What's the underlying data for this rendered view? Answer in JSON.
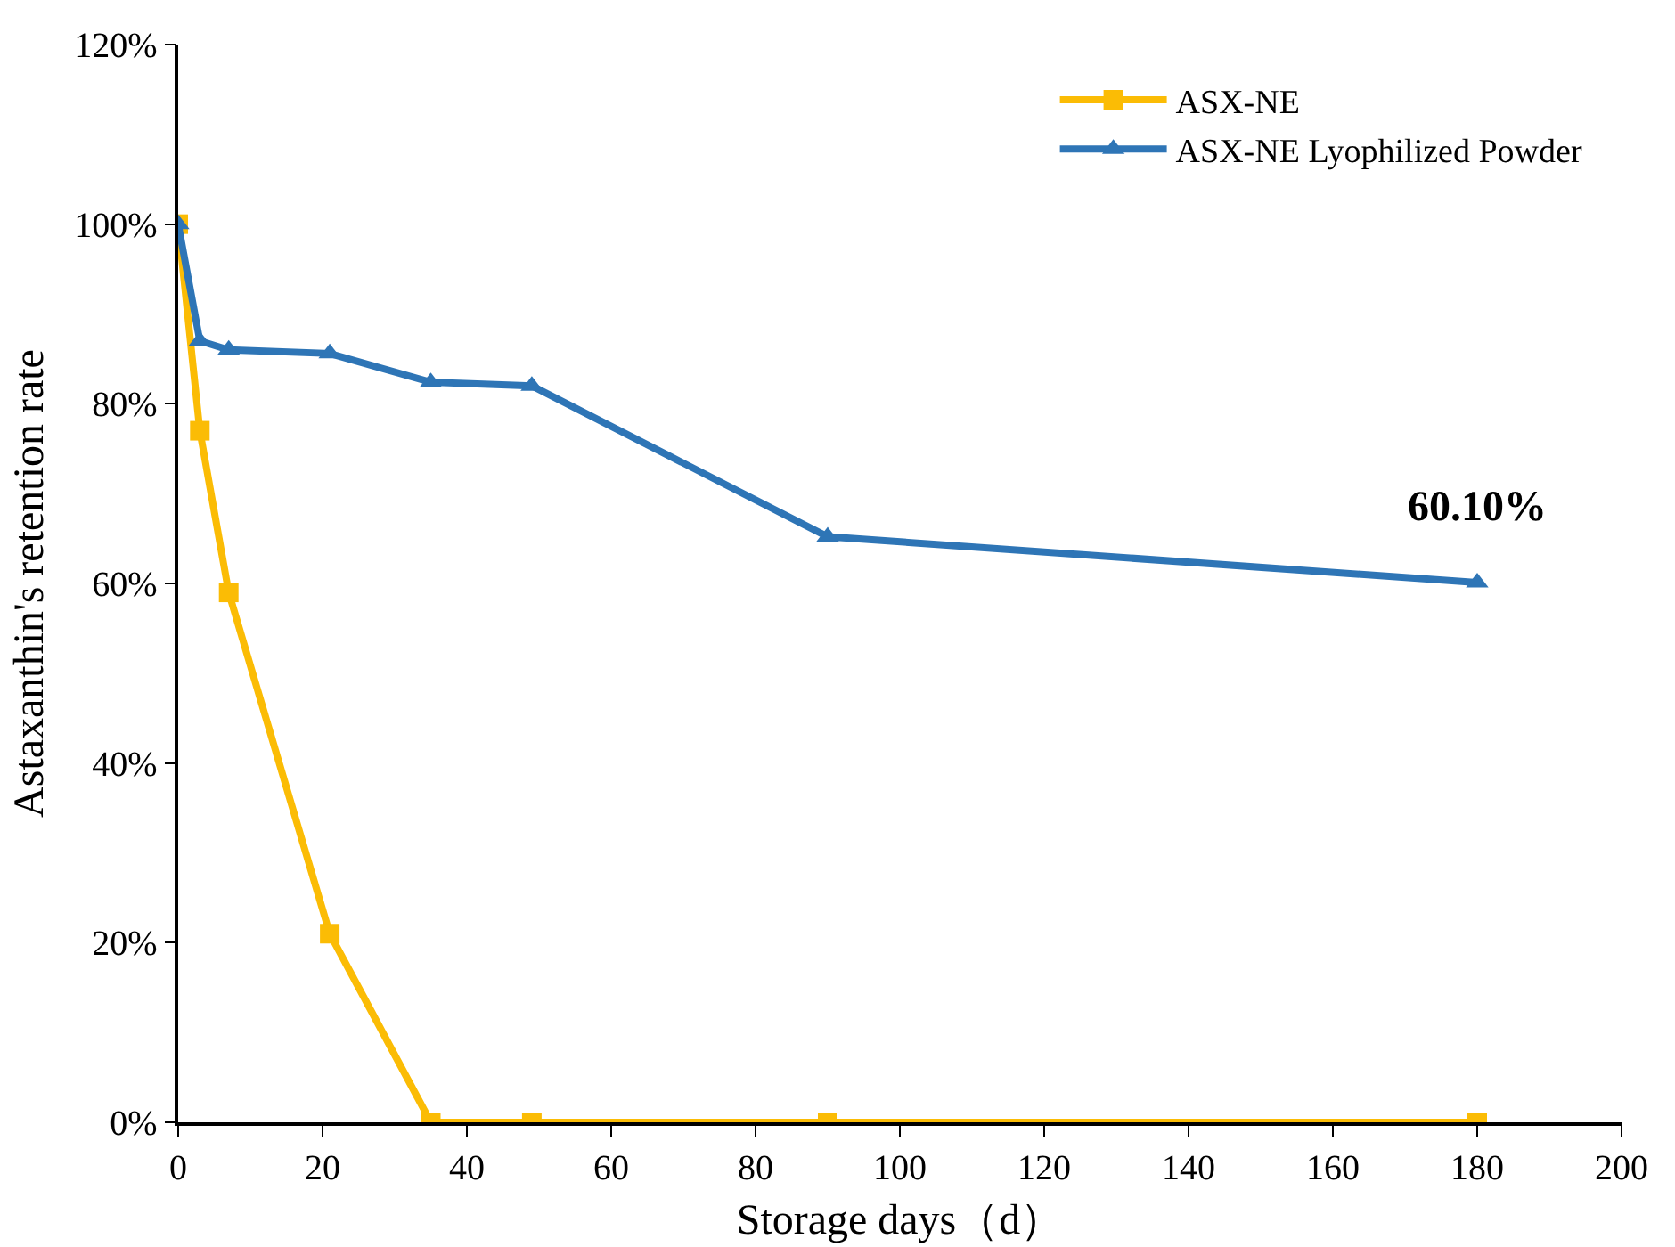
{
  "chart_data": {
    "type": "line",
    "xlabel": "Storage days（d）",
    "ylabel": "Astaxanthin's retention rate",
    "x": [
      0,
      3,
      7,
      21,
      35,
      49,
      90,
      180
    ],
    "series": [
      {
        "name": "ASX-NE",
        "color": "#fbbc05",
        "values": [
          100,
          77,
          59,
          21,
          0,
          0,
          0,
          0
        ],
        "marker": "square"
      },
      {
        "name": "ASX-NE Lyophilized Powder",
        "color": "#2e75b6",
        "values": [
          100,
          87,
          86,
          85.6,
          82.4,
          82,
          65.2,
          60.1
        ],
        "marker": "triangle"
      }
    ],
    "xlim": [
      0,
      200
    ],
    "xticks": [
      0,
      20,
      40,
      60,
      80,
      100,
      120,
      140,
      160,
      180,
      200
    ],
    "ylim": [
      0,
      120
    ],
    "yticks": [
      {
        "value": 0,
        "label": "0%"
      },
      {
        "value": 20,
        "label": "20%"
      },
      {
        "value": 40,
        "label": "40%"
      },
      {
        "value": 60,
        "label": "60%"
      },
      {
        "value": 80,
        "label": "80%"
      },
      {
        "value": 100,
        "label": "100%"
      },
      {
        "value": 120,
        "label": "120%"
      }
    ],
    "annotations": [
      {
        "text": "60.10%",
        "x": 180,
        "y": 60.1
      }
    ],
    "grid": false,
    "legend": "top right",
    "line_style": "solid"
  }
}
